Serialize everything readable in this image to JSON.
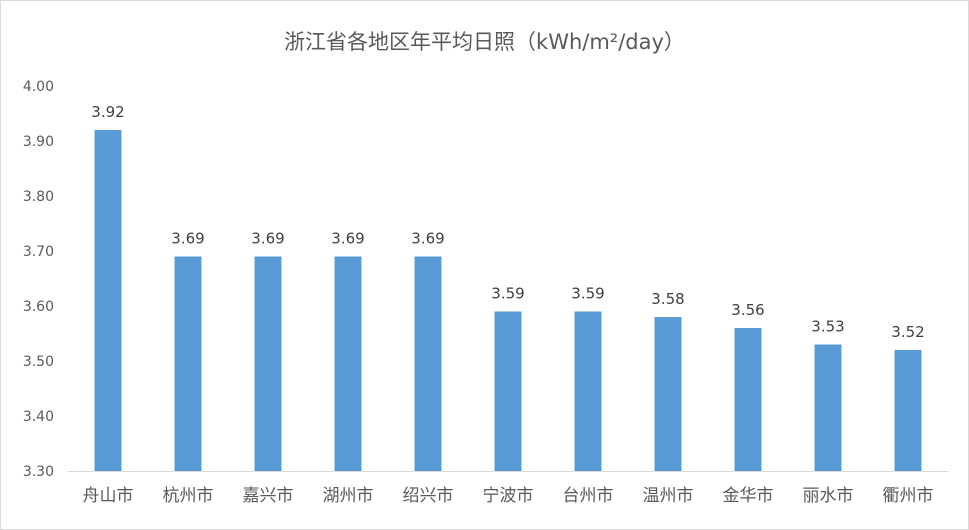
{
  "chart_data": {
    "type": "bar",
    "title": "浙江省各地区年平均日照（kWh/m²/day）",
    "xlabel": "",
    "ylabel": "",
    "ylim": [
      3.3,
      4.0
    ],
    "yticks": [
      "3.30",
      "3.40",
      "3.50",
      "3.60",
      "3.70",
      "3.80",
      "3.90",
      "4.00"
    ],
    "grid": false,
    "categories": [
      "舟山市",
      "杭州市",
      "嘉兴市",
      "湖州市",
      "绍兴市",
      "宁波市",
      "台州市",
      "温州市",
      "金华市",
      "丽水市",
      "衢州市"
    ],
    "values": [
      3.92,
      3.69,
      3.69,
      3.69,
      3.69,
      3.59,
      3.59,
      3.58,
      3.56,
      3.53,
      3.52
    ],
    "labels": [
      "3.92",
      "3.69",
      "3.69",
      "3.69",
      "3.69",
      "3.59",
      "3.59",
      "3.58",
      "3.56",
      "3.53",
      "3.52"
    ],
    "bar_color": "#5B9BD5"
  }
}
